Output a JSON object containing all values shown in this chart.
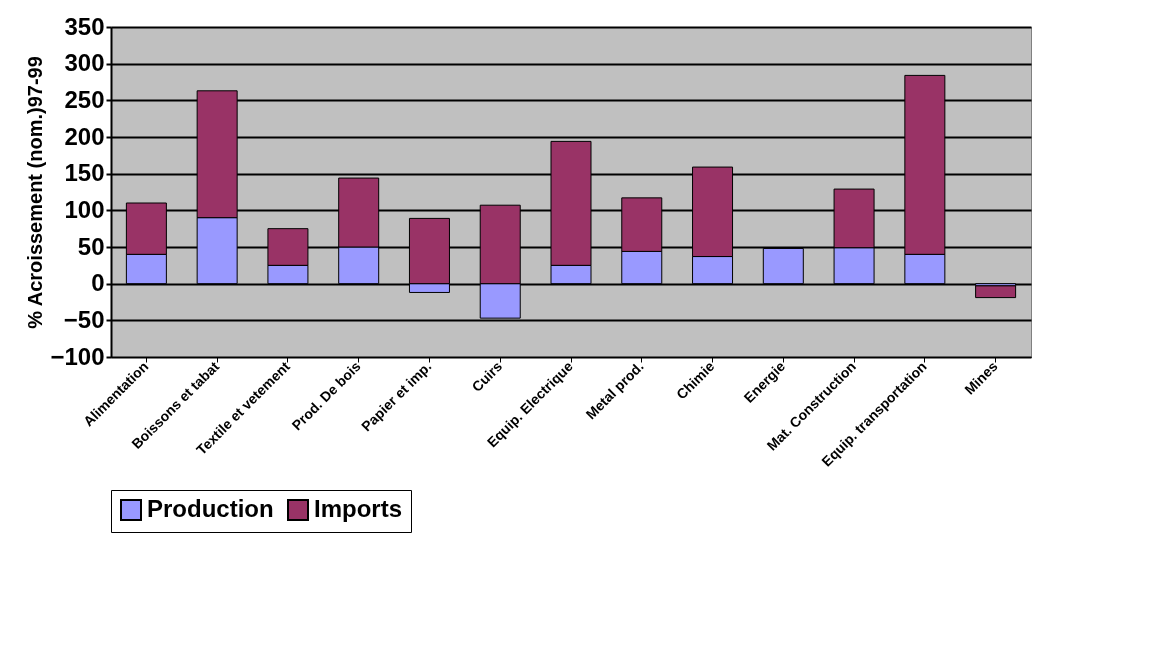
{
  "chart_data": {
    "type": "bar",
    "stacked": true,
    "ylabel": "% Acroissement (nom.)97-99",
    "categories": [
      "Alimentation",
      "Boissons et tabat",
      "Textile et vetement",
      "Prod. De bois",
      "Papier et imp.",
      "Cuirs",
      "Equip. Electrique",
      "Metal prod.",
      "Chimie",
      "Energie",
      "Mat. Construction",
      "Equip. transportation",
      "Mines"
    ],
    "series": [
      {
        "name": "Production",
        "color": "#9999ff",
        "values": [
          40,
          90,
          25,
          50,
          -12,
          -47,
          25,
          44,
          37,
          48,
          49,
          40,
          -3
        ]
      },
      {
        "name": "Imports",
        "color": "#993366",
        "values": [
          70,
          173,
          50,
          94,
          89,
          107,
          169,
          73,
          122,
          null,
          80,
          244,
          -16
        ]
      }
    ],
    "ylim": [
      -100,
      350
    ],
    "yticks": [
      -100,
      -50,
      0,
      50,
      100,
      150,
      200,
      250,
      300,
      350
    ],
    "grid": true,
    "legend": "bottom"
  }
}
